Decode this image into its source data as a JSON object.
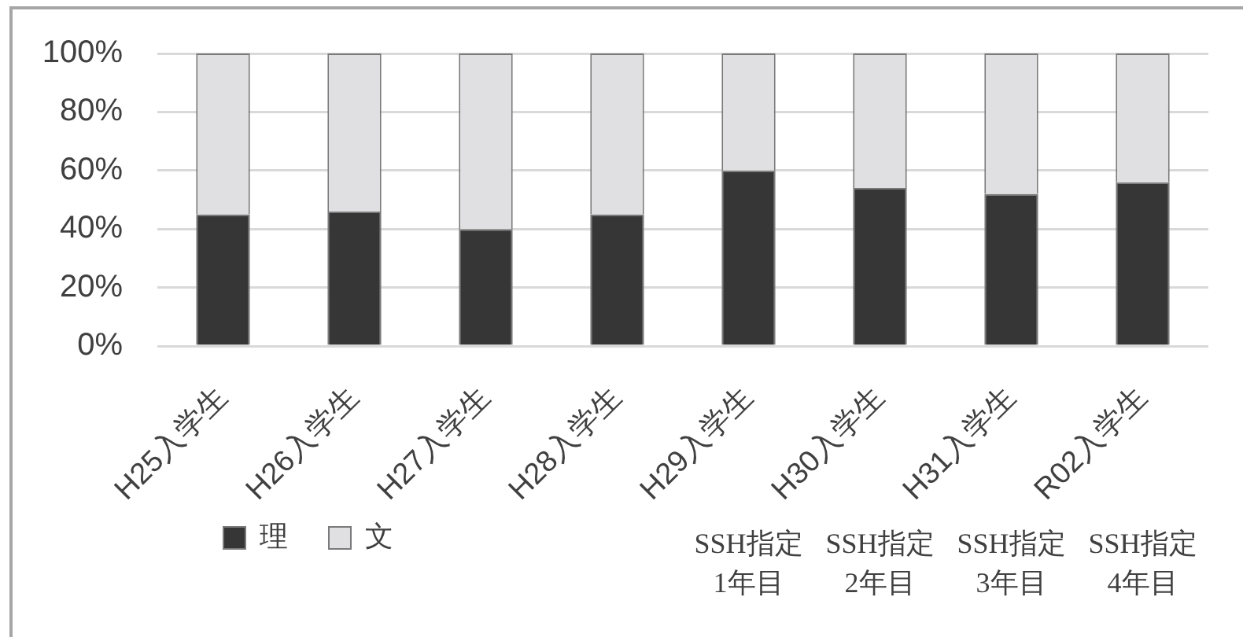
{
  "chart_data": {
    "type": "bar",
    "categories": [
      "H25入学生",
      "H26入学生",
      "H27入学生",
      "H28入学生",
      "H29入学生",
      "H30入学生",
      "H31入学生",
      "R02入学生"
    ],
    "series": [
      {
        "name": "理",
        "color": "#363636",
        "values": [
          45,
          46,
          40,
          45,
          60,
          54,
          52,
          56
        ]
      },
      {
        "name": "文",
        "color": "#e0e0e2",
        "values": [
          55,
          54,
          60,
          55,
          40,
          46,
          48,
          44
        ]
      }
    ],
    "stacked": true,
    "ylim": [
      0,
      100
    ],
    "yticks": [
      {
        "value": 0,
        "label": "0%"
      },
      {
        "value": 20,
        "label": "20%"
      },
      {
        "value": 40,
        "label": "40%"
      },
      {
        "value": 60,
        "label": "60%"
      },
      {
        "value": 80,
        "label": "80%"
      },
      {
        "value": 100,
        "label": "100%"
      }
    ],
    "grid": "y",
    "legend": "bottom left",
    "annotations": [
      "SSH指定\n1年目",
      "SSH指定\n2年目",
      "SSH指定\n3年目",
      "SSH指定\n4年目"
    ]
  }
}
